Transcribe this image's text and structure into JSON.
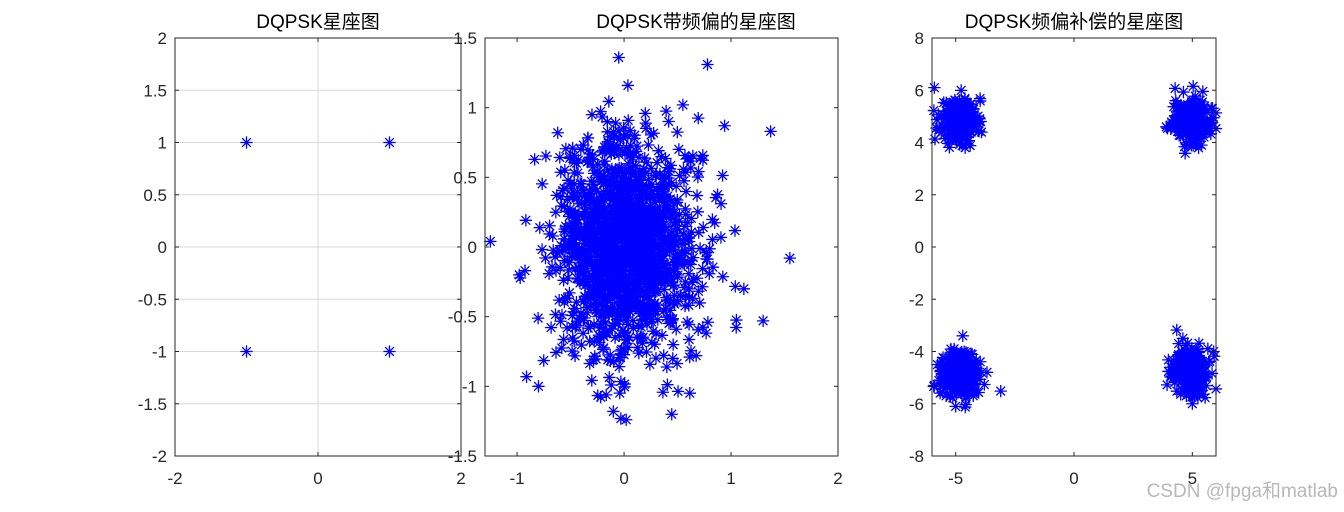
{
  "figure": {
    "watermark": "CSDN @fpga和matlab"
  },
  "chart_data": [
    {
      "type": "scatter",
      "title": "DQPSK星座图",
      "xlim": [
        -2,
        2
      ],
      "ylim": [
        -2,
        2
      ],
      "xticks": [
        -2,
        0,
        2
      ],
      "yticks": [
        -2,
        -1.5,
        -1,
        -0.5,
        0,
        0.5,
        1,
        1.5,
        2
      ],
      "xtick_labels": [
        "-2",
        "0",
        "2"
      ],
      "ytick_labels": [
        "-2",
        "-1.5",
        "-1",
        "-0.5",
        "0",
        "0.5",
        "1",
        "1.5",
        "2"
      ],
      "grid": true,
      "marker": "*",
      "color": "#0000ff",
      "points": [
        [
          -1,
          1
        ],
        [
          1,
          1
        ],
        [
          -1,
          -1
        ],
        [
          1,
          -1
        ]
      ]
    },
    {
      "type": "scatter",
      "title": "DQPSK带频偏的星座图",
      "xlim": [
        -1.3,
        2
      ],
      "ylim": [
        -1.5,
        1.5
      ],
      "xticks": [
        -1,
        0,
        1,
        2
      ],
      "yticks": [
        -1.5,
        -1,
        -0.5,
        0,
        0.5,
        1,
        1.5
      ],
      "xtick_labels": [
        "-1",
        "0",
        "1",
        "2"
      ],
      "ytick_labels": [
        "-1.5",
        "-1",
        "-0.5",
        "0",
        "0.5",
        "1",
        "1.5"
      ],
      "grid": false,
      "marker": "*",
      "color": "#0000ff",
      "distribution": {
        "center": [
          0.02,
          0.0
        ],
        "std": [
          0.33,
          0.38
        ],
        "count": 1500,
        "seed": 7
      },
      "points": [
        [
          -0.05,
          1.36
        ],
        [
          0.78,
          1.31
        ],
        [
          -0.62,
          0.82
        ],
        [
          1.37,
          0.83
        ],
        [
          0.94,
          0.87
        ],
        [
          -1.25,
          0.04
        ],
        [
          1.55,
          -0.08
        ],
        [
          1.3,
          -0.53
        ],
        [
          0.02,
          -1.24
        ],
        [
          -0.1,
          -1.18
        ],
        [
          -0.8,
          -1.0
        ],
        [
          1.12,
          -0.3
        ],
        [
          -0.98,
          -0.2
        ],
        [
          0.55,
          1.02
        ],
        [
          -0.3,
          0.95
        ]
      ]
    },
    {
      "type": "scatter",
      "title": "DQPSK频偏补偿的星座图",
      "xlim": [
        -6,
        6
      ],
      "ylim": [
        -8,
        8
      ],
      "xticks": [
        -5,
        0,
        5
      ],
      "yticks": [
        -8,
        -6,
        -4,
        -2,
        0,
        2,
        4,
        6,
        8
      ],
      "xtick_labels": [
        "-5",
        "0",
        "5"
      ],
      "ytick_labels": [
        "-8",
        "-6",
        "-4",
        "-2",
        "0",
        "2",
        "4",
        "6",
        "8"
      ],
      "grid": false,
      "marker": "*",
      "color": "#0000ff",
      "distribution": {
        "clusters": [
          [
            -4.85,
            4.85
          ],
          [
            4.95,
            4.85
          ],
          [
            -4.85,
            -4.85
          ],
          [
            4.95,
            -4.75
          ]
        ],
        "std": [
          0.38,
          0.42
        ],
        "count_per_cluster": 260,
        "seed": 11
      },
      "points": [
        [
          -5.9,
          6.1
        ],
        [
          -4.0,
          4.8
        ],
        [
          -4.6,
          3.8
        ],
        [
          3.9,
          4.6
        ],
        [
          5.8,
          5.3
        ],
        [
          4.3,
          5.6
        ],
        [
          -5.0,
          -6.1
        ],
        [
          -4.7,
          -3.4
        ],
        [
          -5.9,
          -5.3
        ],
        [
          4.6,
          -3.5
        ],
        [
          5.9,
          -4.0
        ],
        [
          4.1,
          -4.6
        ],
        [
          5.0,
          -6.0
        ],
        [
          -3.9,
          -4.8
        ]
      ]
    }
  ]
}
